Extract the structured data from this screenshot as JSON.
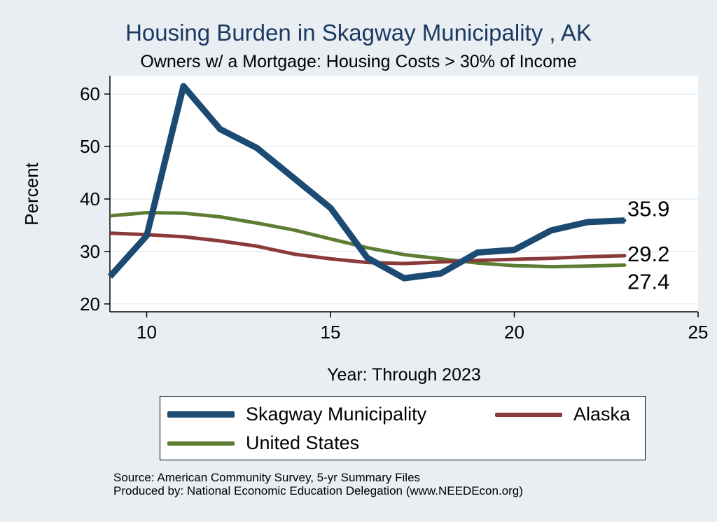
{
  "chart_data": {
    "type": "line",
    "title": "Housing Burden in Skagway Municipality , AK",
    "subtitle": "Owners w/ a Mortgage: Housing Costs > 30% of Income",
    "xlabel": "Year: Through 2023",
    "ylabel": "Percent",
    "xlim": [
      9,
      25
    ],
    "ylim": [
      18.5,
      63.5
    ],
    "xticks": [
      10,
      15,
      20,
      25
    ],
    "yticks": [
      20,
      30,
      40,
      50,
      60
    ],
    "grid": true,
    "legend_position": "bottom",
    "x": [
      9,
      10,
      11,
      12,
      13,
      14,
      15,
      16,
      17,
      18,
      19,
      20,
      21,
      22,
      23
    ],
    "series": [
      {
        "name": "Skagway Municipality",
        "color": "#1b4b73",
        "values": [
          25.2,
          33.0,
          61.5,
          53.3,
          49.7,
          44.0,
          38.3,
          28.8,
          24.9,
          25.8,
          29.8,
          30.3,
          34.0,
          35.6,
          35.9
        ],
        "end_label": "35.9"
      },
      {
        "name": "Alaska",
        "color": "#8b3a3a",
        "values": [
          33.5,
          33.2,
          32.8,
          32.0,
          31.0,
          29.5,
          28.6,
          27.9,
          27.7,
          28.0,
          28.3,
          28.5,
          28.7,
          29.0,
          29.2
        ],
        "end_label": "29.2"
      },
      {
        "name": "United States",
        "color": "#5d7e32",
        "values": [
          36.8,
          37.4,
          37.3,
          36.6,
          35.4,
          34.1,
          32.4,
          30.7,
          29.4,
          28.6,
          27.8,
          27.3,
          27.1,
          27.2,
          27.4
        ],
        "end_label": "27.4"
      }
    ]
  },
  "source_line": "Source: American Community Survey, 5-yr Summary Files",
  "produced_line": "Produced by: National Economic Education Delegation (www.NEEDEcon.org)"
}
